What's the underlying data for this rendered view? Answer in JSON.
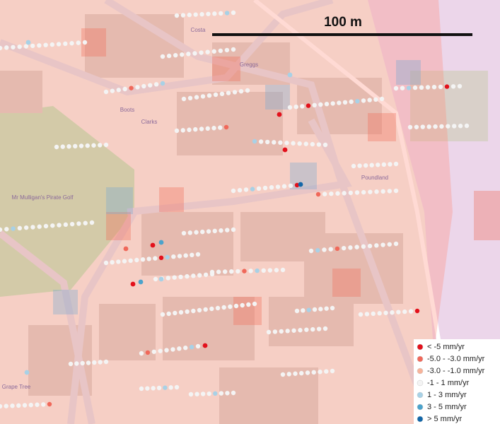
{
  "scale_bar": {
    "label": "100 m"
  },
  "legend": {
    "items": [
      {
        "label": "< -5 mm/yr",
        "color": "#e3101b"
      },
      {
        "label": "-5.0 - -3.0 mm/yr",
        "color": "#f0685a"
      },
      {
        "label": "-3.0 - -1.0 mm/yr",
        "color": "#f7b39a"
      },
      {
        "label": "-1 - 1 mm/yr",
        "color": "#f4f4f4"
      },
      {
        "label": "1 - 3 mm/yr",
        "color": "#a8d1e6"
      },
      {
        "label": "3 - 5 mm/yr",
        "color": "#4ba3cc"
      },
      {
        "label": "> 5 mm/yr",
        "color": "#1266a8"
      }
    ]
  },
  "places": [
    {
      "label": "Costa"
    },
    {
      "label": "Greggs"
    },
    {
      "label": "Boots"
    },
    {
      "label": "Clarks"
    },
    {
      "label": "Mr Mulligan's Pirate Golf"
    },
    {
      "label": "Poundland"
    },
    {
      "label": "Grape Tree"
    }
  ]
}
